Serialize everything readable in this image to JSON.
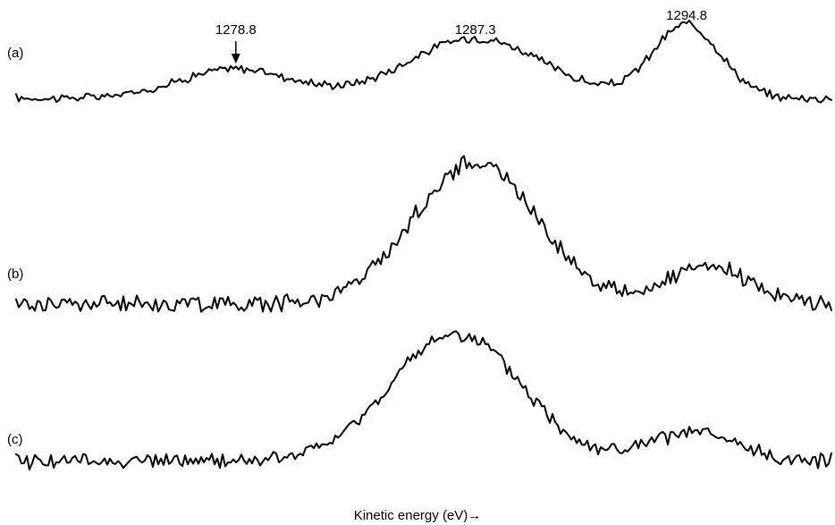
{
  "chart_data": {
    "type": "line",
    "xlabel": "Kinetic energy (eV)→",
    "x_range_ev": [
      1271.0,
      1300.0
    ],
    "peak_labels": [
      {
        "energy": 1278.8,
        "text": "1278.8",
        "arrow": true
      },
      {
        "energy": 1287.3,
        "text": "1287.3",
        "arrow": false
      },
      {
        "energy": 1294.8,
        "text": "1294.8",
        "arrow": false
      }
    ],
    "series": [
      {
        "panel": "(a)",
        "baseline": 0.1,
        "peaks": [
          [
            1278.8,
            0.4,
            2.0
          ],
          [
            1287.3,
            0.82,
            2.4
          ],
          [
            1294.8,
            1.0,
            1.2
          ]
        ]
      },
      {
        "panel": "(b)",
        "baseline": 0.08,
        "peaks": [
          [
            1287.3,
            1.0,
            2.2
          ],
          [
            1295.6,
            0.25,
            1.5
          ]
        ]
      },
      {
        "panel": "(c)",
        "baseline": 0.06,
        "peaks": [
          [
            1286.6,
            1.0,
            2.3
          ],
          [
            1295.0,
            0.22,
            1.5
          ]
        ]
      }
    ],
    "grid": false,
    "legend": "none"
  }
}
